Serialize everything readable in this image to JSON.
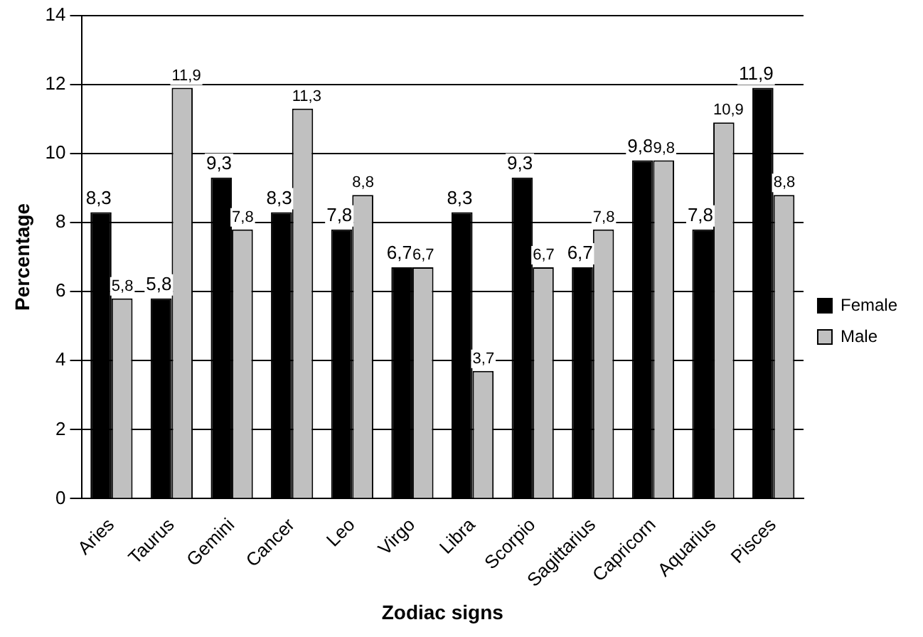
{
  "chart_data": {
    "type": "bar",
    "xlabel": "Zodiac signs",
    "ylabel": "Percentage",
    "categories": [
      "Aries",
      "Taurus",
      "Gemini",
      "Cancer",
      "Leo",
      "Virgo",
      "Libra",
      "Scorpio",
      "Sagittarius",
      "Capricorn",
      "Aquarius",
      "Pisces"
    ],
    "series": [
      {
        "name": "Female",
        "color": "#000000",
        "values": [
          8.3,
          5.8,
          9.3,
          8.3,
          7.8,
          6.7,
          8.3,
          9.3,
          6.7,
          9.8,
          7.8,
          11.9
        ],
        "value_labels": [
          "8,3",
          "5,8",
          "9,3",
          "8,3",
          "7,8",
          "6,7",
          "8,3",
          "9,3",
          "6,7",
          "9,8",
          "7,8",
          "11,9"
        ]
      },
      {
        "name": "Male",
        "color": "#c0c0c0",
        "values": [
          5.8,
          11.9,
          7.8,
          11.3,
          8.8,
          6.7,
          3.7,
          6.7,
          7.8,
          9.8,
          10.9,
          8.8
        ],
        "value_labels": [
          "5,8",
          "11,9",
          "7,8",
          "11,3",
          "8,8",
          "6,7",
          "3,7",
          "6,7",
          "7,8",
          "9,8",
          "10,9",
          "8,8"
        ]
      }
    ],
    "ylim": [
      0,
      14
    ],
    "yticks": [
      0,
      2,
      4,
      6,
      8,
      10,
      12,
      14
    ],
    "grid": "y",
    "legend": "right"
  }
}
